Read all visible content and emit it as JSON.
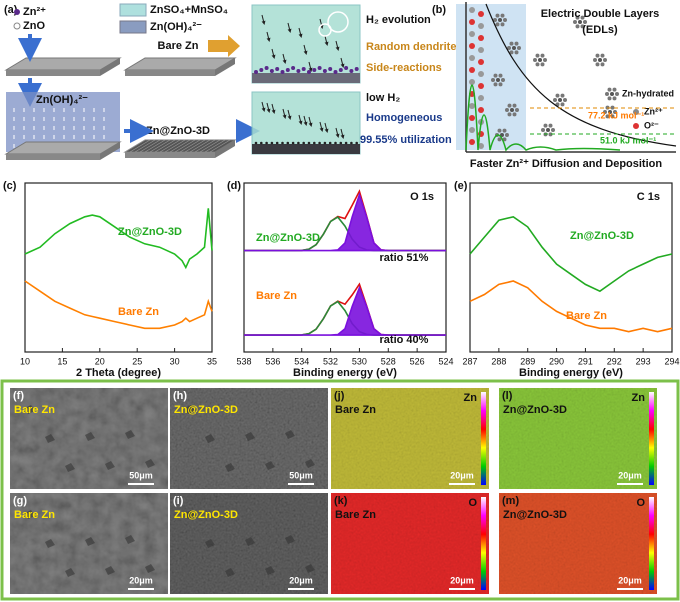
{
  "panel_a": {
    "label": "(a)",
    "legend": {
      "zn_ion": "Zn²⁺",
      "zno": "ZnO",
      "electrolyte": "ZnSO₄+MnSO₄",
      "zincate": "Zn(OH)₄²⁻"
    },
    "bare_zn": "Bare Zn",
    "h2_evolution": "H₂ evolution",
    "dendrite": "Random dendrite",
    "side_reactions": "Side-reactions",
    "zincate_block": "Zn(OH)₄²⁻",
    "zn_zno": "Zn@ZnO-3D",
    "low_h2": "low H₂",
    "homogeneous": "Homogeneous",
    "utilization": "99.55% utilization"
  },
  "panel_b": {
    "label": "(b)",
    "title": "Electric Double Layers",
    "subtitle": "(EDLs)",
    "hydrated": "Zn-hydrated",
    "zn_ion": "Zn²⁺",
    "oxygen": "O²⁻",
    "energy_high": "77.2 kJ mol⁻¹",
    "energy_low": "51.0 kJ mol⁻¹",
    "caption": "Faster Zn²⁺ Diffusion and Deposition"
  },
  "chart_data": [
    {
      "type": "line",
      "label": "(c)",
      "xlabel": "2 Theta (degree)",
      "xlim": [
        10,
        35
      ],
      "xticks": [
        10,
        15,
        20,
        25,
        30,
        35
      ],
      "ylim": [
        0,
        100
      ],
      "x": [
        10,
        12,
        14,
        16,
        18,
        19,
        20,
        22,
        24,
        26,
        28,
        30,
        31,
        31.5,
        32,
        33,
        34,
        34.5,
        35
      ],
      "series": [
        {
          "name": "Zn@ZnO-3D",
          "color": "#22bb22",
          "values": [
            58,
            62,
            70,
            76,
            80,
            81,
            80,
            74,
            68,
            64,
            62,
            58,
            54,
            50,
            55,
            58,
            62,
            85,
            60
          ]
        },
        {
          "name": "Bare Zn",
          "color": "#ff8000",
          "values": [
            42,
            36,
            30,
            26,
            22,
            21,
            20,
            18,
            16,
            14,
            14,
            16,
            18,
            20,
            18,
            20,
            22,
            30,
            24
          ]
        }
      ]
    },
    {
      "type": "line",
      "label": "(d)",
      "title": "O 1s",
      "xlabel": "Binding energy (eV)",
      "xlim": [
        538,
        524
      ],
      "xticks": [
        538,
        536,
        534,
        532,
        530,
        528,
        526,
        524
      ],
      "ylim": [
        0,
        100
      ],
      "x": [
        538,
        537.5,
        537,
        536.5,
        536,
        535.5,
        535,
        534.5,
        534,
        533.5,
        533,
        532.5,
        532,
        531.5,
        531,
        530.5,
        530,
        529.5,
        529,
        528.5,
        528,
        527.5,
        527,
        526.5,
        526,
        525.5,
        525,
        524.5,
        524
      ],
      "annotations": [
        "ratio 51%",
        "ratio 40%"
      ],
      "series": [
        {
          "name": "Zn@ZnO-3D",
          "color": "#dd1111",
          "values": [
            60,
            60,
            60,
            60,
            60,
            60,
            60,
            60,
            60.1,
            60.8,
            63.5,
            69.7,
            77.3,
            80.2,
            79,
            86.8,
            95.1,
            80.4,
            64.5,
            60.4,
            60,
            60,
            60,
            60,
            60,
            60,
            60,
            60,
            60
          ]
        },
        {
          "color": "#2a8a3a",
          "values": [
            60,
            60,
            60,
            60,
            60,
            60,
            60,
            60,
            60.1,
            60.8,
            63.5,
            69.7,
            77.3,
            79.8,
            74.5,
            66.8,
            62.1,
            60.4,
            60,
            60,
            60,
            60,
            60,
            60,
            60,
            60,
            60,
            60,
            60
          ]
        },
        {
          "color": "#7a10dd",
          "fill": true,
          "values": [
            60,
            60,
            60,
            60,
            60,
            60,
            60,
            60,
            60,
            60,
            60,
            60,
            60,
            60.4,
            64.5,
            80,
            93,
            80,
            64.5,
            60.4,
            60,
            60,
            60,
            60,
            60,
            60,
            60,
            60,
            60
          ]
        },
        {
          "name": "Bare Zn",
          "color": "#dd1111",
          "values": [
            10,
            10,
            10,
            10,
            10,
            10,
            10,
            10,
            10.1,
            10.8,
            13.5,
            19.7,
            27.3,
            30.1,
            28.3,
            33.8,
            40.1,
            27.4,
            13.8,
            10.3,
            10,
            10,
            10,
            10,
            10,
            10,
            10,
            10,
            10
          ]
        },
        {
          "color": "#2a8a3a",
          "values": [
            10,
            10,
            10,
            10,
            10,
            10,
            10,
            10,
            10.1,
            10.8,
            13.5,
            19.7,
            27.3,
            29.8,
            24.5,
            16.8,
            12.1,
            10.4,
            10,
            10,
            10,
            10,
            10,
            10,
            10,
            10,
            10,
            10,
            10
          ]
        },
        {
          "color": "#7a10dd",
          "fill": true,
          "values": [
            10,
            10,
            10,
            10,
            10,
            10,
            10,
            10,
            10,
            10,
            10,
            10,
            10,
            10.3,
            13.8,
            27,
            38,
            27,
            13.8,
            10.3,
            10,
            10,
            10,
            10,
            10,
            10,
            10,
            10,
            10
          ]
        }
      ]
    },
    {
      "type": "line",
      "label": "(e)",
      "title": "C 1s",
      "xlabel": "Binding energy (eV)",
      "xlim": [
        287,
        294
      ],
      "xticks": [
        287,
        288,
        289,
        290,
        291,
        292,
        293,
        294
      ],
      "ylim": [
        0,
        100
      ],
      "x": [
        287,
        287.5,
        288,
        288.5,
        289,
        289.5,
        290,
        290.5,
        291,
        291.5,
        292,
        292.5,
        293,
        293.5,
        294
      ],
      "series": [
        {
          "name": "Zn@ZnO-3D",
          "color": "#22aa22",
          "values": [
            58,
            68,
            78,
            80,
            74,
            62,
            52,
            46,
            40,
            36,
            42,
            48,
            52,
            56,
            58
          ]
        },
        {
          "name": "Bare Zn",
          "color": "#ff7a00",
          "values": [
            30,
            34,
            40,
            42,
            38,
            30,
            24,
            20,
            16,
            14,
            14,
            12,
            14,
            12,
            14
          ]
        }
      ]
    }
  ],
  "images": [
    {
      "label": "(f)",
      "sample": "Bare Zn",
      "scale_bar": "50μm"
    },
    {
      "label": "(h)",
      "sample": "Zn@ZnO-3D",
      "scale_bar": "50μm"
    },
    {
      "label": "(j)",
      "sample": "Bare Zn",
      "element": "Zn",
      "scale_bar": "20μm"
    },
    {
      "label": "(l)",
      "sample": "Zn@ZnO-3D",
      "element": "Zn",
      "scale_bar": "20μm"
    },
    {
      "label": "(g)",
      "sample": "Bare Zn",
      "scale_bar": "20μm"
    },
    {
      "label": "(i)",
      "sample": "Zn@ZnO-3D",
      "scale_bar": "20μm"
    },
    {
      "label": "(k)",
      "sample": "Bare Zn",
      "element": "O",
      "scale_bar": "20μm"
    },
    {
      "label": "(m)",
      "sample": "Zn@ZnO-3D",
      "element": "O",
      "scale_bar": "20μm"
    }
  ]
}
